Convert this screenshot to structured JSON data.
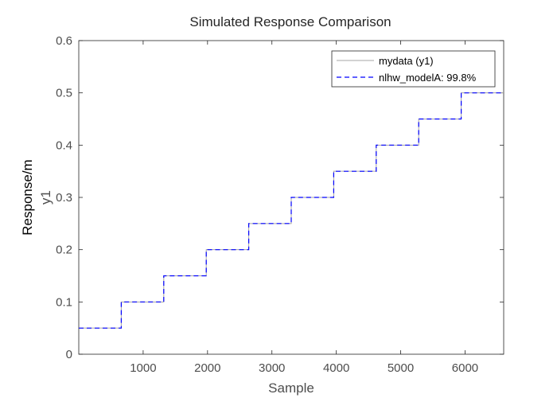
{
  "chart_data": {
    "type": "line",
    "title": "Simulated Response Comparison",
    "xlabel": "Sample",
    "ylabel": "y1",
    "outer_ylabel": "Response/m",
    "xlim": [
      0,
      6600
    ],
    "ylim": [
      0,
      0.6
    ],
    "xticks": [
      1000,
      2000,
      3000,
      4000,
      5000,
      6000
    ],
    "yticks": [
      0,
      0.1,
      0.2,
      0.3,
      0.4,
      0.5,
      0.6
    ],
    "xtick_labels": [
      "1000",
      "2000",
      "3000",
      "4000",
      "5000",
      "6000"
    ],
    "ytick_labels": [
      "0",
      "0.1",
      "0.2",
      "0.3",
      "0.4",
      "0.5",
      "0.6"
    ],
    "grid": false,
    "legend_position": "top-right",
    "series": [
      {
        "name": "mydata (y1)",
        "color": "#a6a6a6",
        "style": "solid",
        "x": [
          0,
          660,
          660,
          1320,
          1320,
          1980,
          1980,
          2640,
          2640,
          3300,
          3300,
          3960,
          3960,
          4620,
          4620,
          5280,
          5280,
          5940,
          5940,
          6600
        ],
        "y": [
          0.05,
          0.05,
          0.1,
          0.1,
          0.15,
          0.15,
          0.2,
          0.2,
          0.25,
          0.25,
          0.3,
          0.3,
          0.35,
          0.35,
          0.4,
          0.4,
          0.45,
          0.45,
          0.5,
          0.5
        ]
      },
      {
        "name": "nlhw_modelA: 99.8%",
        "color": "#0000ff",
        "style": "dashed",
        "x": [
          0,
          660,
          660,
          1320,
          1320,
          1980,
          1980,
          2640,
          2640,
          3300,
          3300,
          3960,
          3960,
          4620,
          4620,
          5280,
          5280,
          5940,
          5940,
          6600
        ],
        "y": [
          0.05,
          0.05,
          0.1,
          0.1,
          0.15,
          0.15,
          0.2,
          0.2,
          0.25,
          0.25,
          0.3,
          0.3,
          0.35,
          0.35,
          0.4,
          0.4,
          0.45,
          0.45,
          0.5,
          0.5
        ]
      }
    ]
  }
}
